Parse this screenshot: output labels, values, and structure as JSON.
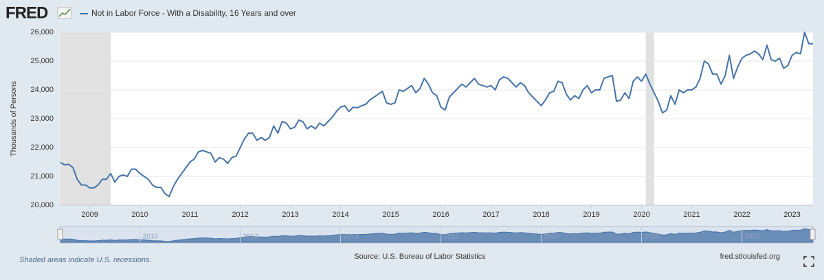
{
  "chart_data": {
    "type": "line",
    "logo": "FRED",
    "y_label": "Thousands of Persons",
    "note": "Shaded areas indicate U.S. recessions.",
    "source": "Source: U.S. Bureau of Labor Statistics",
    "site": "fred.stlouisfed.org",
    "xlim": [
      2008.417,
      2023.417
    ],
    "xticks": [
      2009,
      2010,
      2011,
      2012,
      2013,
      2014,
      2015,
      2016,
      2017,
      2018,
      2019,
      2020,
      2021,
      2022,
      2023
    ],
    "ylim": [
      20000,
      26000
    ],
    "yticks": [
      {
        "value": 20000,
        "label": "20,000"
      },
      {
        "value": 21000,
        "label": "21,000"
      },
      {
        "value": 22000,
        "label": "22,000"
      },
      {
        "value": 23000,
        "label": "23,000"
      },
      {
        "value": 24000,
        "label": "24,000"
      },
      {
        "value": 25000,
        "label": "25,000"
      },
      {
        "value": 26000,
        "label": "26,000"
      }
    ],
    "grid": true,
    "recessions": [
      [
        2008.417,
        2009.417
      ],
      [
        2020.083,
        2020.25
      ]
    ],
    "recession_color": "#e1e1e1",
    "navigator_xticks": [
      2010,
      2012,
      2014,
      2016,
      2018,
      2020,
      2022
    ],
    "x": [
      2008.417,
      2008.5,
      2008.583,
      2008.667,
      2008.75,
      2008.833,
      2008.917,
      2009,
      2009.083,
      2009.167,
      2009.25,
      2009.333,
      2009.417,
      2009.5,
      2009.583,
      2009.667,
      2009.75,
      2009.833,
      2009.917,
      2010,
      2010.083,
      2010.167,
      2010.25,
      2010.333,
      2010.417,
      2010.5,
      2010.583,
      2010.667,
      2010.75,
      2010.833,
      2010.917,
      2011,
      2011.083,
      2011.167,
      2011.25,
      2011.333,
      2011.417,
      2011.5,
      2011.583,
      2011.667,
      2011.75,
      2011.833,
      2011.917,
      2012,
      2012.083,
      2012.167,
      2012.25,
      2012.333,
      2012.417,
      2012.5,
      2012.583,
      2012.667,
      2012.75,
      2012.833,
      2012.917,
      2013,
      2013.083,
      2013.167,
      2013.25,
      2013.333,
      2013.417,
      2013.5,
      2013.583,
      2013.667,
      2013.75,
      2013.833,
      2013.917,
      2014,
      2014.083,
      2014.167,
      2014.25,
      2014.333,
      2014.417,
      2014.5,
      2014.583,
      2014.667,
      2014.75,
      2014.833,
      2014.917,
      2015,
      2015.083,
      2015.167,
      2015.25,
      2015.333,
      2015.417,
      2015.5,
      2015.583,
      2015.667,
      2015.75,
      2015.833,
      2015.917,
      2016,
      2016.083,
      2016.167,
      2016.25,
      2016.333,
      2016.417,
      2016.5,
      2016.583,
      2016.667,
      2016.75,
      2016.833,
      2016.917,
      2017,
      2017.083,
      2017.167,
      2017.25,
      2017.333,
      2017.417,
      2017.5,
      2017.583,
      2017.667,
      2017.75,
      2017.833,
      2017.917,
      2018,
      2018.083,
      2018.167,
      2018.25,
      2018.333,
      2018.417,
      2018.5,
      2018.583,
      2018.667,
      2018.75,
      2018.833,
      2018.917,
      2019,
      2019.083,
      2019.167,
      2019.25,
      2019.333,
      2019.417,
      2019.5,
      2019.583,
      2019.667,
      2019.75,
      2019.833,
      2019.917,
      2020,
      2020.083,
      2020.167,
      2020.25,
      2020.333,
      2020.417,
      2020.5,
      2020.583,
      2020.667,
      2020.75,
      2020.833,
      2020.917,
      2021,
      2021.083,
      2021.167,
      2021.25,
      2021.333,
      2021.417,
      2021.5,
      2021.583,
      2021.667,
      2021.75,
      2021.833,
      2021.917,
      2022,
      2022.083,
      2022.167,
      2022.25,
      2022.333,
      2022.417,
      2022.5,
      2022.583,
      2022.667,
      2022.75,
      2022.833,
      2022.917,
      2023,
      2023.083,
      2023.167,
      2023.25,
      2023.333,
      2023.417
    ],
    "series": [
      {
        "name": "Not in Labor Force - With a Disability, 16 Years and over",
        "color": "#4572a7",
        "values": [
          21480,
          21400,
          21420,
          21300,
          20900,
          20700,
          20700,
          20600,
          20600,
          20700,
          20900,
          20900,
          21100,
          20800,
          21000,
          21050,
          21000,
          21250,
          21250,
          21100,
          21000,
          20900,
          20700,
          20620,
          20620,
          20400,
          20300,
          20650,
          20900,
          21100,
          21300,
          21500,
          21600,
          21850,
          21900,
          21850,
          21800,
          21500,
          21650,
          21600,
          21450,
          21650,
          21700,
          22000,
          22300,
          22500,
          22500,
          22250,
          22350,
          22250,
          22350,
          22750,
          22500,
          22900,
          22850,
          22650,
          22700,
          22950,
          22900,
          22650,
          22750,
          22650,
          22850,
          22750,
          22900,
          23050,
          23250,
          23400,
          23450,
          23250,
          23400,
          23380,
          23450,
          23500,
          23650,
          23750,
          23850,
          23950,
          23550,
          23500,
          23550,
          24000,
          23950,
          24050,
          24150,
          23900,
          24050,
          24400,
          24200,
          23900,
          23800,
          23400,
          23300,
          23750,
          23900,
          24050,
          24200,
          24100,
          24250,
          24400,
          24200,
          24150,
          24100,
          24150,
          24000,
          24350,
          24450,
          24400,
          24250,
          24100,
          24250,
          24150,
          23900,
          23750,
          23600,
          23450,
          23650,
          23900,
          23950,
          24300,
          24250,
          23850,
          23650,
          23800,
          23700,
          24000,
          24150,
          23900,
          24000,
          24000,
          24400,
          24450,
          24500,
          23600,
          23650,
          23900,
          23700,
          24300,
          24450,
          24300,
          24550,
          24200,
          23900,
          23600,
          23200,
          23300,
          23800,
          23500,
          24000,
          23900,
          24000,
          24000,
          24100,
          24400,
          25000,
          24900,
          24550,
          24550,
          24200,
          24500,
          25200,
          24400,
          24800,
          25100,
          25200,
          25250,
          25350,
          25250,
          25050,
          25550,
          25050,
          25000,
          25100,
          24750,
          24850,
          25200,
          25300,
          25250,
          26000,
          25600,
          25600
        ]
      }
    ]
  }
}
